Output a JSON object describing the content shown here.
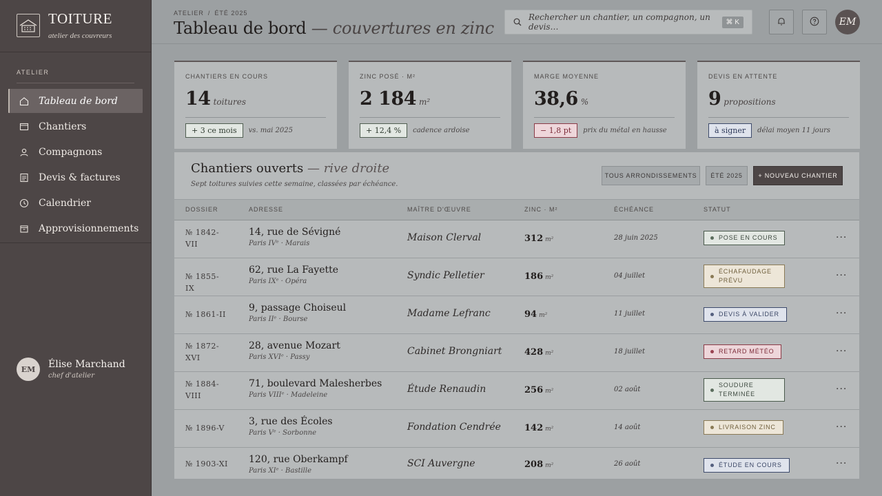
{
  "brand": {
    "title": "TOITURE",
    "subtitle": "atelier des couvreurs"
  },
  "sidebar": {
    "section": "ATELIER",
    "items": [
      {
        "label": "Tableau de bord",
        "icon": "home-icon",
        "active": true
      },
      {
        "label": "Chantiers",
        "icon": "window-icon"
      },
      {
        "label": "Compagnons",
        "icon": "user-icon"
      },
      {
        "label": "Devis & factures",
        "icon": "document-icon"
      },
      {
        "label": "Calendrier",
        "icon": "clock-icon"
      },
      {
        "label": "Approvisionnements",
        "icon": "box-icon"
      }
    ],
    "user": {
      "initials": "EM",
      "name": "Élise Marchand",
      "role": "chef d'atelier"
    }
  },
  "header": {
    "breadcrumb": [
      "ATELIER",
      "ÉTÉ 2025"
    ],
    "breadcrumb_sep": "/",
    "title_main": "Tableau de bord",
    "title_sep": " — ",
    "title_italic": "couvertures en zinc",
    "search_placeholder": "Rechercher un chantier, un compagnon, un devis…",
    "search_shortcut": "⌘ K",
    "avatar_initials": "EM"
  },
  "kpis": [
    {
      "label": "CHANTIERS EN COURS",
      "value": "14",
      "unit": "toitures",
      "chip": "+ 3 ce mois",
      "chip_tone": "green",
      "note": "vs. mai 2025"
    },
    {
      "label": "ZINC POSÉ · M²",
      "value": "2 184",
      "unit": "m²",
      "chip": "+ 12,4 %",
      "chip_tone": "green",
      "note": "cadence ardoise"
    },
    {
      "label": "MARGE MOYENNE",
      "value": "38,6",
      "unit": "%",
      "chip": "− 1,8 pt",
      "chip_tone": "red",
      "note": "prix du métal en hausse"
    },
    {
      "label": "DEVIS EN ATTENTE",
      "value": "9",
      "unit": "propositions",
      "chip": "à signer",
      "chip_tone": "blue",
      "note": "délai moyen 11 jours"
    }
  ],
  "panel": {
    "title_main": "Chantiers ouverts",
    "title_sep": " — ",
    "title_italic": "rive droite",
    "subtitle": "Sept toitures suivies cette semaine, classées par échéance.",
    "filter_1": "TOUS ARRONDISSEMENTS",
    "filter_2": "ÉTÉ 2025",
    "new_button": "+ NOUVEAU CHANTIER",
    "columns": [
      "DOSSIER",
      "ADRESSE",
      "MAÎTRE D'ŒUVRE",
      "ZINC · M²",
      "ÉCHÉANCE",
      "STATUT"
    ],
    "rows": [
      {
        "dossier": "№ 1842-VII",
        "address": "14, rue de Sévigné",
        "district": "Paris IVᵉ · Marais",
        "maitre": "Maison Clerval",
        "zinc": "312",
        "unit": "m²",
        "echeance": "28 juin 2025",
        "status": "POSE EN COURS",
        "tone": "green"
      },
      {
        "dossier": "№ 1855-IX",
        "address": "62, rue La Fayette",
        "district": "Paris IXᵉ · Opéra",
        "maitre": "Syndic Pelletier",
        "zinc": "186",
        "unit": "m²",
        "echeance": "04 juillet",
        "status": "ÉCHAFAUDAGE PRÉVU",
        "tone": "amber"
      },
      {
        "dossier": "№ 1861-II",
        "address": "9, passage Choiseul",
        "district": "Paris IIᵉ · Bourse",
        "maitre": "Madame Lefranc",
        "zinc": "94",
        "unit": "m²",
        "echeance": "11 juillet",
        "status": "DEVIS À VALIDER",
        "tone": "blue"
      },
      {
        "dossier": "№ 1872-XVI",
        "address": "28, avenue Mozart",
        "district": "Paris XVIᵉ · Passy",
        "maitre": "Cabinet Brongniart",
        "zinc": "428",
        "unit": "m²",
        "echeance": "18 juillet",
        "status": "RETARD MÉTÉO",
        "tone": "red"
      },
      {
        "dossier": "№ 1884-VIII",
        "address": "71, boulevard Malesherbes",
        "district": "Paris VIIIᵉ · Madeleine",
        "maitre": "Étude Renaudin",
        "zinc": "256",
        "unit": "m²",
        "echeance": "02 août",
        "status": "SOUDURE TERMINÉE",
        "tone": "green"
      },
      {
        "dossier": "№ 1896-V",
        "address": "3, rue des Écoles",
        "district": "Paris Vᵉ · Sorbonne",
        "maitre": "Fondation Cendrée",
        "zinc": "142",
        "unit": "m²",
        "echeance": "14 août",
        "status": "LIVRAISON ZINC",
        "tone": "amber"
      },
      {
        "dossier": "№ 1903-XI",
        "address": "120, rue Oberkampf",
        "district": "Paris XIᵉ · Bastille",
        "maitre": "SCI Auvergne",
        "zinc": "208",
        "unit": "m²",
        "echeance": "26 août",
        "status": "ÉTUDE EN COURS",
        "tone": "blue"
      }
    ],
    "more_label": "···"
  },
  "colors": {
    "sidebar_bg": "#4d4646",
    "page_bg": "#9ca0a2",
    "card_bg": "#b7babb",
    "status_green": "#5b6d5d",
    "status_amber": "#8a7a55",
    "status_blue": "#55607f",
    "status_red": "#9a4452"
  }
}
